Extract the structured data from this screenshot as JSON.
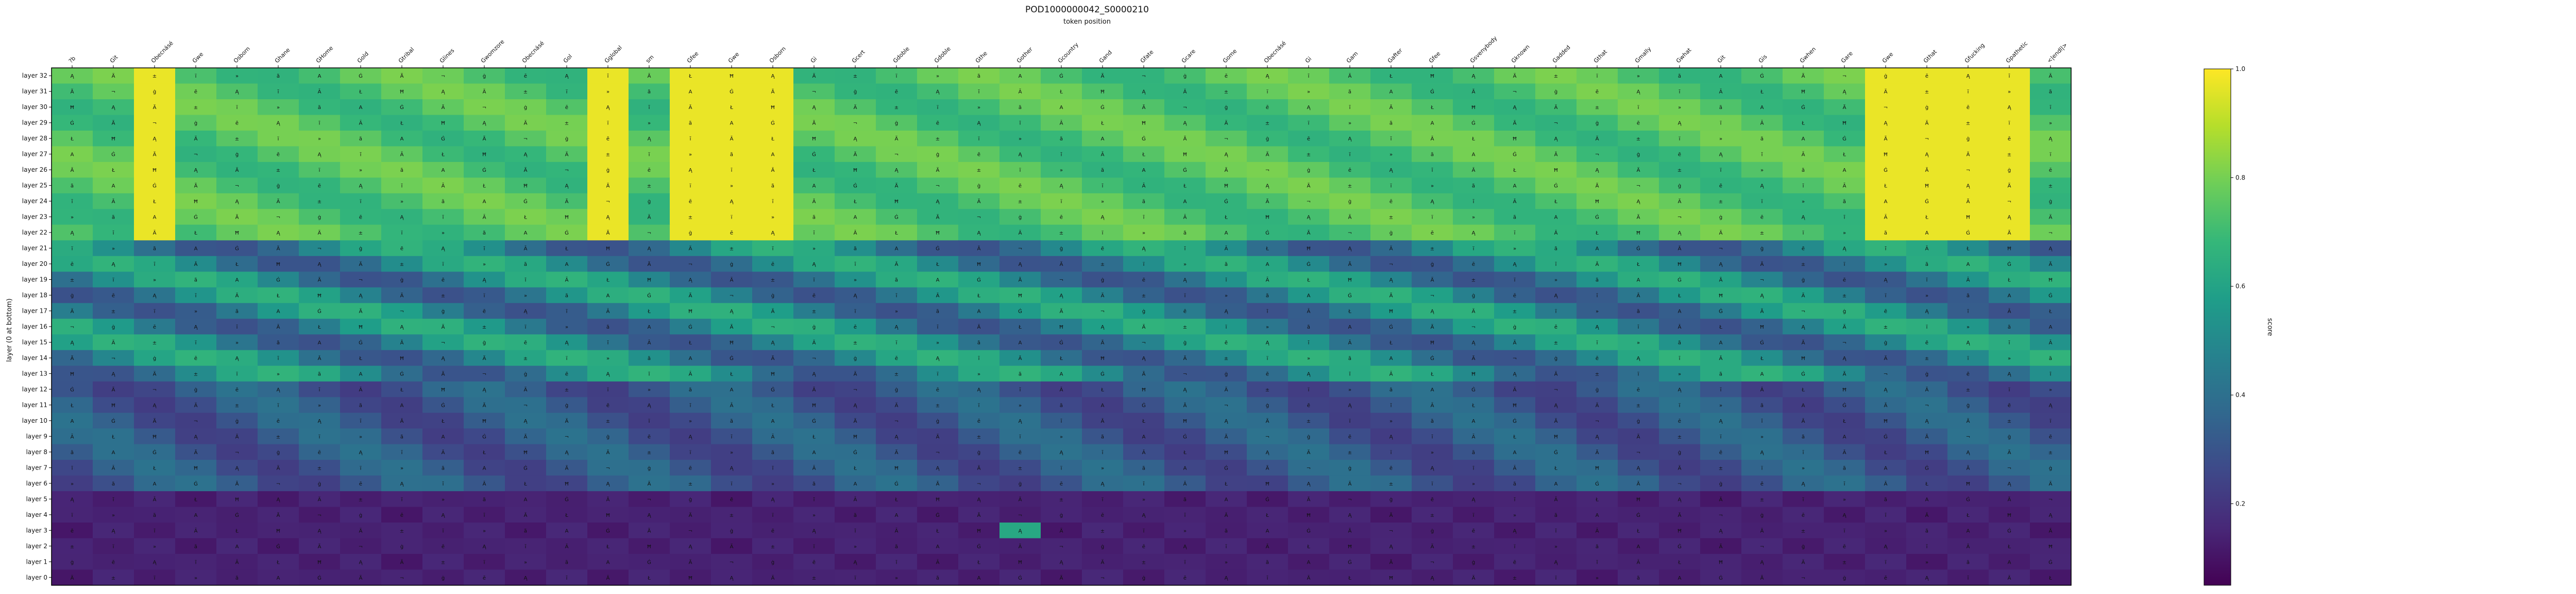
{
  "chart_data": {
    "type": "heatmap",
    "title": "POD1000000042_S0000210",
    "xlabel": "token position",
    "ylabel": "layer (0 at bottom)",
    "colorbar_label": "score",
    "colorbar_ticks": [
      "0.2",
      "0.4",
      "0.6",
      "0.8",
      "1.0"
    ],
    "colormap": [
      "#440154",
      "#482878",
      "#3e4989",
      "#31688e",
      "#26828e",
      "#1f9e89",
      "#35b779",
      "#6ece58",
      "#b5de2b",
      "#fde725"
    ],
    "value_range": [
      0.05,
      1.0
    ],
    "x_tick_labels": [
      "?b",
      "Git",
      "Obecnásé",
      "Gwe",
      "Osborn",
      "Ghane",
      "GHome",
      "Gold",
      "Gtribal",
      "Glines",
      "Gwomzore",
      "Obecnásé",
      "Gol",
      "Gglobal",
      "sm",
      "Gfee",
      "Gwe",
      "Osborn",
      "Gi",
      "Gcert",
      "Gdoble",
      "Gdoble",
      "Gthe",
      "Gother",
      "Gcountry",
      "Gand",
      "Gfate",
      "Gcare",
      "Gome",
      "Obecnásé",
      "Gi",
      "Gam",
      "Gafter",
      "Gfee",
      "Gsvenybody",
      "Gknown",
      "Gadded",
      "Gthat",
      "Gmally",
      "Gwhat",
      "Git",
      "Gis",
      "Gwhen",
      "Gare",
      "Gwe",
      "Gthat",
      "Gfucking",
      "Gpathetic",
      "<|endl|>"
    ],
    "y_tick_labels": [
      "layer 32",
      "layer 31",
      "layer 30",
      "layer 29",
      "layer 28",
      "layer 27",
      "layer 26",
      "layer 25",
      "layer 24",
      "layer 23",
      "layer 22",
      "layer 21",
      "layer 20",
      "layer 19",
      "layer 18",
      "layer 17",
      "layer 16",
      "layer 15",
      "layer 14",
      "layer 13",
      "layer 12",
      "layer 11",
      "layer 10",
      "layer 9",
      "layer 8",
      "layer 7",
      "layer 6",
      "layer 5",
      "layer 4",
      "layer 3",
      "layer 2",
      "layer 1",
      "layer 0"
    ],
    "cell_token_set": [
      "Ą",
      "A",
      "Ą",
      "Ä",
      "Ġ",
      "ī",
      "±",
      "Ã",
      "Ā",
      "ï",
      "¬",
      "Ł",
      "»",
      "ġ",
      "Ħ",
      "ã",
      "ē"
    ],
    "grid": false
  }
}
